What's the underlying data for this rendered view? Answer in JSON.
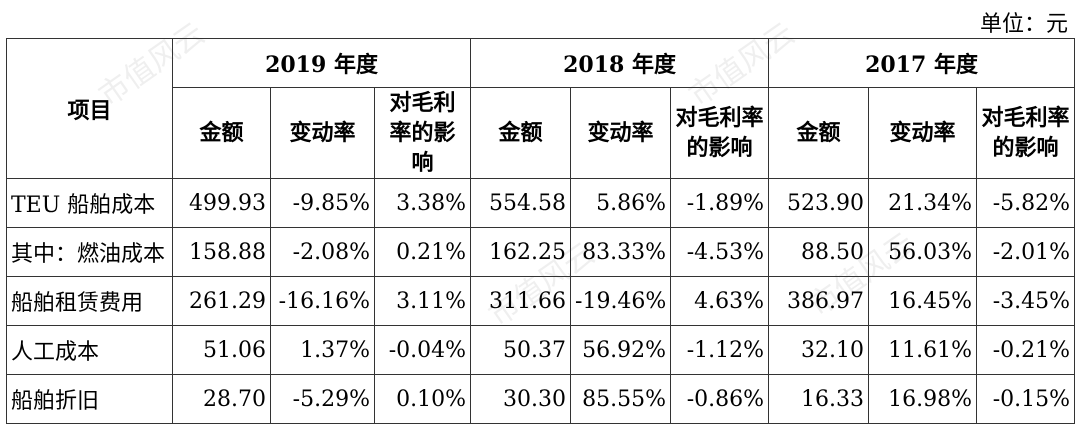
{
  "unit": "单位：元",
  "header": {
    "item": "项目",
    "years": [
      "2019 年度",
      "2018 年度",
      "2017 年度"
    ],
    "cols": [
      "金额",
      "变动率",
      "对毛利率的影响"
    ]
  },
  "rows": [
    {
      "label": "TEU 船舶成本",
      "values": [
        "499.93",
        "-9.85%",
        "3.38%",
        "554.58",
        "5.86%",
        "-1.89%",
        "523.90",
        "21.34%",
        "-5.82%"
      ]
    },
    {
      "label": "其中：燃油成本",
      "values": [
        "158.88",
        "-2.08%",
        "0.21%",
        "162.25",
        "83.33%",
        "-4.53%",
        "88.50",
        "56.03%",
        "-2.01%"
      ]
    },
    {
      "label": "船舶租赁费用",
      "values": [
        "261.29",
        "-16.16%",
        "3.11%",
        "311.66",
        "-19.46%",
        "4.63%",
        "386.97",
        "16.45%",
        "-3.45%"
      ]
    },
    {
      "label": "人工成本",
      "values": [
        "51.06",
        "1.37%",
        "-0.04%",
        "50.37",
        "56.92%",
        "-1.12%",
        "32.10",
        "11.61%",
        "-0.21%"
      ]
    },
    {
      "label": "船舶折旧",
      "values": [
        "28.70",
        "-5.29%",
        "0.10%",
        "30.30",
        "85.55%",
        "-0.86%",
        "16.33",
        "16.98%",
        "-0.15%"
      ]
    }
  ],
  "watermark": "市值风云"
}
